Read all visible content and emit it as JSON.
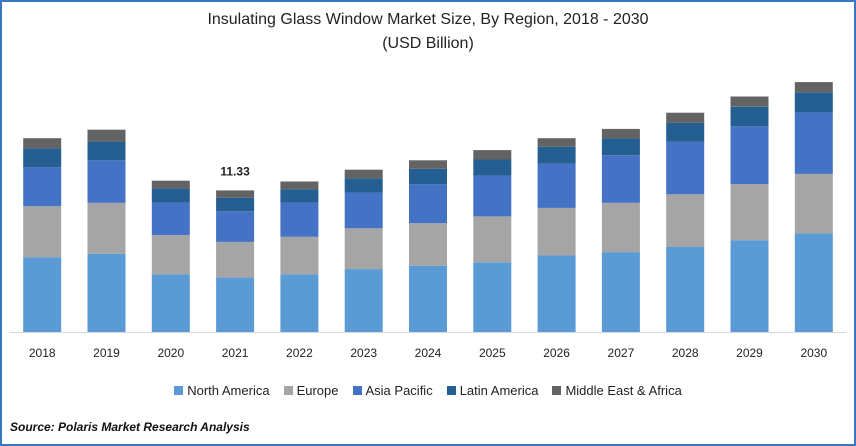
{
  "chart_data": {
    "type": "bar",
    "stacked": true,
    "title": "Insulating Glass Window Market Size, By Region, 2018 - 2030",
    "subtitle": "(USD Billion)",
    "xlabel": "",
    "ylabel": "",
    "ylim": [
      0,
      16
    ],
    "grid": false,
    "legend_position": "bottom",
    "categories": [
      "2018",
      "2019",
      "2020",
      "2021",
      "2022",
      "2023",
      "2024",
      "2025",
      "2026",
      "2027",
      "2028",
      "2029",
      "2030"
    ],
    "series": [
      {
        "name": "North America",
        "color": "#5b9bd5",
        "values": [
          4.4,
          4.6,
          3.4,
          3.2,
          3.4,
          3.7,
          3.9,
          4.1,
          4.5,
          4.7,
          5.0,
          5.4,
          5.8
        ]
      },
      {
        "name": "Europe",
        "color": "#a5a5a5",
        "values": [
          3.0,
          3.0,
          2.3,
          2.1,
          2.2,
          2.4,
          2.5,
          2.7,
          2.8,
          2.9,
          3.1,
          3.3,
          3.5
        ]
      },
      {
        "name": "Asia Pacific",
        "color": "#4472c4",
        "values": [
          2.3,
          2.5,
          1.9,
          1.8,
          2.0,
          2.1,
          2.3,
          2.4,
          2.6,
          2.8,
          3.1,
          3.4,
          3.6
        ]
      },
      {
        "name": "Latin America",
        "color": "#255e91",
        "values": [
          1.1,
          1.1,
          0.85,
          0.8,
          0.8,
          0.85,
          0.9,
          0.95,
          1.0,
          1.0,
          1.1,
          1.15,
          1.2
        ]
      },
      {
        "name": "Middle East & Africa",
        "color": "#636363",
        "values": [
          0.6,
          0.7,
          0.45,
          0.43,
          0.45,
          0.5,
          0.5,
          0.55,
          0.5,
          0.55,
          0.6,
          0.6,
          0.6
        ]
      }
    ],
    "data_labels": [
      {
        "category": "2021",
        "text": "11.33"
      }
    ],
    "source": "Source: Polaris  Market Research Analysis"
  }
}
